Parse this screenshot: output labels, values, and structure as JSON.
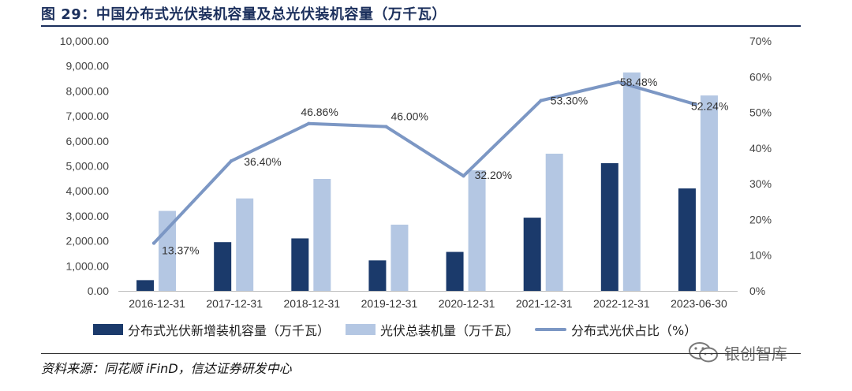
{
  "title": "图 29：中国分布式光伏装机容量及总光伏装机容量（万千瓦）",
  "source": "资料来源：同花顺 iFinD，信达证券研发中心",
  "watermark": "银创智库",
  "colors": {
    "dark_bar": "#1b3a6b",
    "light_bar": "#b4c7e3",
    "line": "#7c97c4",
    "title": "#1b2f5c"
  },
  "chart_data": {
    "type": "bar",
    "categories": [
      "2016-12-31",
      "2017-12-31",
      "2018-12-31",
      "2019-12-31",
      "2020-12-31",
      "2021-12-31",
      "2022-12-31",
      "2023-06-30"
    ],
    "series": [
      {
        "name": "分布式光伏新增装机容量（万千瓦）",
        "type": "bar",
        "axis": "left",
        "values": [
          430,
          1950,
          2100,
          1220,
          1560,
          2930,
          5110,
          4100
        ]
      },
      {
        "name": "光伏总装机量（万千瓦）",
        "type": "bar",
        "axis": "left",
        "values": [
          3200,
          3700,
          4480,
          2650,
          4830,
          5490,
          8740,
          7820
        ]
      },
      {
        "name": "分布式光伏占比（%）",
        "type": "line",
        "axis": "right",
        "values": [
          13.37,
          36.4,
          46.86,
          46.0,
          32.2,
          53.3,
          58.48,
          52.24
        ],
        "labels": [
          "13.37%",
          "36.40%",
          "46.86%",
          "46.00%",
          "32.20%",
          "53.30%",
          "58.48%",
          "52.24%"
        ]
      }
    ],
    "y_left": {
      "range": [
        0,
        10000
      ],
      "ticks": [
        "0.00",
        "1,000.00",
        "2,000.00",
        "3,000.00",
        "4,000.00",
        "5,000.00",
        "6,000.00",
        "7,000.00",
        "8,000.00",
        "9,000.00",
        "10,000.00"
      ]
    },
    "y_right": {
      "range": [
        0,
        70
      ],
      "ticks": [
        "0%",
        "10%",
        "20%",
        "30%",
        "40%",
        "50%",
        "60%",
        "70%"
      ]
    },
    "legend_position": "bottom",
    "grid": false
  }
}
